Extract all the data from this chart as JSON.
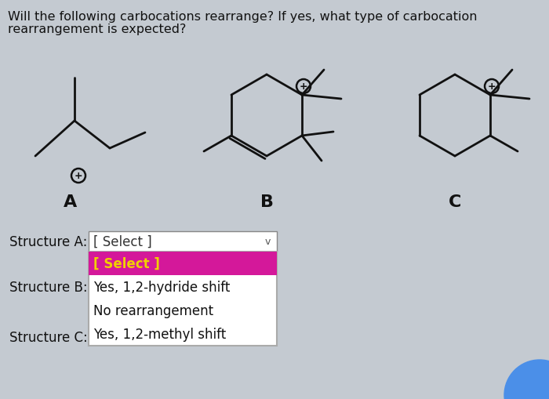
{
  "background_color": "#c4cad1",
  "title_line1": "Will the following carbocations rearrange? If yes, what type of carbocation",
  "title_line2": "rearrangement is expected?",
  "structure_labels": [
    "Structure A:",
    "Structure B:",
    "Structure C:"
  ],
  "dropdown_text": "[ Select ]",
  "dropdown_highlighted": "[ Select ]",
  "dropdown_options": [
    "Yes, 1,2-hydride shift",
    "No rearrangement",
    "Yes, 1,2-methyl shift"
  ],
  "highlight_color": "#d4189a",
  "highlight_text_color": "#f0d000",
  "text_color": "#111111",
  "title_fontsize": 11.5,
  "label_fontsize": 16,
  "body_fontsize": 12,
  "blue_color": "#4b8fe8",
  "lw": 2.0
}
